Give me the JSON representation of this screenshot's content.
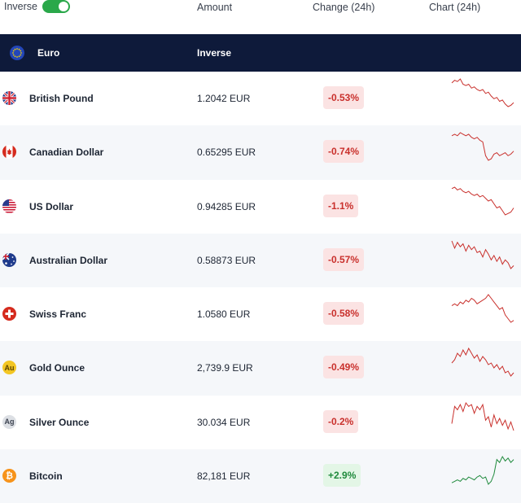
{
  "header": {
    "inverse_label": "Inverse",
    "inverse_on": true,
    "amount_label": "Amount",
    "change_label": "Change (24h)",
    "chart_label": "Chart (24h)"
  },
  "base": {
    "currency": "Euro",
    "mode": "Inverse"
  },
  "colors": {
    "negative": "#c9302c",
    "positive": "#1f8a3c",
    "base_row_bg": "#0e1a3a",
    "toggle": "#2aa84a"
  },
  "rows": [
    {
      "name": "British Pound",
      "amount": "1.2042 EUR",
      "change": "-0.53%",
      "direction": "down",
      "icon": "uk-flag-icon",
      "trend": [
        8,
        6,
        7,
        5,
        9,
        10,
        9,
        12,
        11,
        13,
        14,
        13,
        16,
        15,
        18,
        20,
        19,
        22,
        21,
        24,
        26,
        25,
        23
      ]
    },
    {
      "name": "Canadian Dollar",
      "amount": "0.65295 EUR",
      "change": "-0.74%",
      "direction": "down",
      "icon": "canada-flag-icon",
      "trend": [
        12,
        11,
        12,
        10,
        11,
        12,
        11,
        13,
        14,
        13,
        15,
        16,
        25,
        28,
        27,
        24,
        23,
        25,
        24,
        23,
        25,
        24,
        22
      ]
    },
    {
      "name": "US Dollar",
      "amount": "0.94285 EUR",
      "change": "-1.1%",
      "direction": "down",
      "icon": "us-flag-icon",
      "trend": [
        8,
        7,
        9,
        8,
        10,
        11,
        10,
        12,
        13,
        12,
        14,
        13,
        15,
        17,
        16,
        19,
        22,
        21,
        24,
        27,
        26,
        25,
        22
      ]
    },
    {
      "name": "Australian Dollar",
      "amount": "0.58873 EUR",
      "change": "-0.57%",
      "direction": "down",
      "icon": "australia-flag-icon",
      "trend": [
        9,
        14,
        10,
        13,
        11,
        16,
        12,
        15,
        13,
        17,
        16,
        20,
        15,
        18,
        22,
        19,
        23,
        20,
        25,
        22,
        24,
        28,
        26
      ]
    },
    {
      "name": "Swiss Franc",
      "amount": "1.0580 EUR",
      "change": "-0.58%",
      "direction": "down",
      "icon": "swiss-flag-icon",
      "trend": [
        14,
        13,
        14,
        12,
        13,
        11,
        12,
        10,
        11,
        13,
        12,
        11,
        10,
        8,
        10,
        12,
        14,
        16,
        15,
        19,
        21,
        23,
        22
      ]
    },
    {
      "name": "Gold Ounce",
      "amount": "2,739.9 EUR",
      "change": "-0.49%",
      "direction": "down",
      "icon": "gold-icon",
      "trend": [
        14,
        12,
        8,
        10,
        6,
        9,
        5,
        8,
        11,
        9,
        13,
        10,
        12,
        15,
        14,
        17,
        15,
        18,
        16,
        20,
        19,
        22,
        20
      ]
    },
    {
      "name": "Silver Ounce",
      "amount": "30.034 EUR",
      "change": "-0.2%",
      "direction": "down",
      "icon": "silver-icon",
      "trend": [
        20,
        10,
        12,
        9,
        13,
        8,
        10,
        9,
        14,
        10,
        12,
        9,
        18,
        16,
        22,
        15,
        20,
        17,
        21,
        18,
        23,
        19,
        24
      ]
    },
    {
      "name": "Bitcoin",
      "amount": "82,181 EUR",
      "change": "+2.9%",
      "direction": "up",
      "icon": "bitcoin-icon",
      "trend": [
        26,
        25,
        24,
        25,
        23,
        24,
        22,
        23,
        24,
        22,
        21,
        23,
        22,
        27,
        25,
        20,
        10,
        12,
        8,
        11,
        9,
        12,
        10
      ]
    }
  ]
}
